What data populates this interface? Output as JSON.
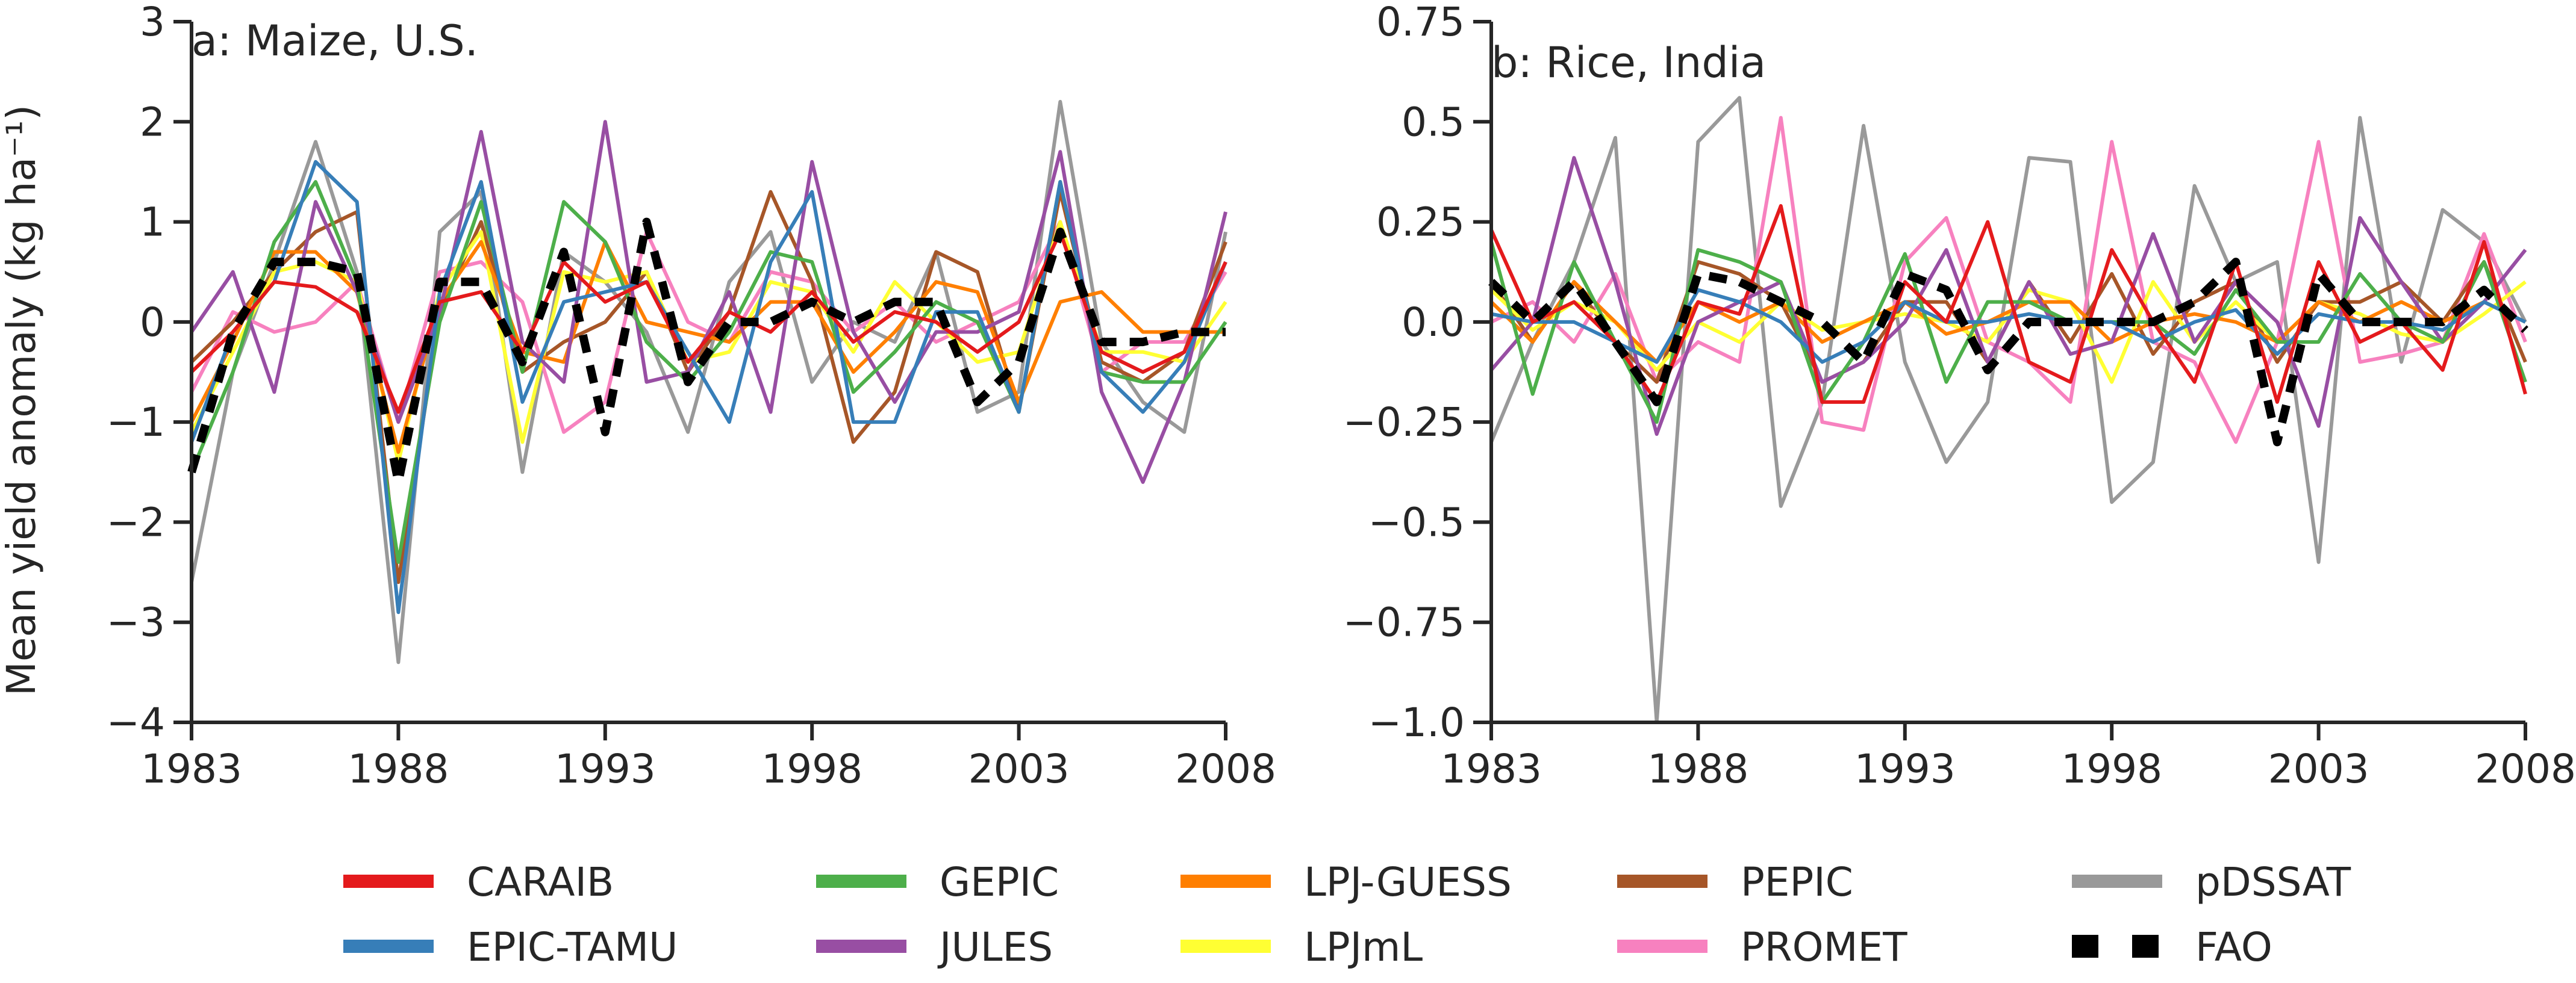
{
  "colors": {
    "CARAIB": "#e41a1c",
    "EPIC-TAMU": "#377eb8",
    "GEPIC": "#4daf4a",
    "JULES": "#984ea3",
    "LPJ-GUESS": "#ff7f00",
    "LPJmL": "#ffff33",
    "PEPIC": "#a65628",
    "PROMET": "#f781bf",
    "pDSSAT": "#999999",
    "FAO": "#000000"
  },
  "ylabel": "Mean yield anomaly (kg ha⁻¹)",
  "legend": {
    "placement": "bottom",
    "entries": [
      "CARAIB",
      "GEPIC",
      "LPJ-GUESS",
      "PEPIC",
      "pDSSAT",
      "EPIC-TAMU",
      "JULES",
      "LPJmL",
      "PROMET",
      "FAO"
    ]
  },
  "chart_data": [
    {
      "type": "line",
      "title": "a: Maize, U.S.",
      "ylabel": "Mean yield anomaly (kg ha⁻¹)",
      "xlim": [
        1983,
        2008
      ],
      "ylim": [
        -4,
        3
      ],
      "xticks": [
        1983,
        1988,
        1993,
        1998,
        2003,
        2008
      ],
      "yticks": [
        -4,
        -3,
        -2,
        -1,
        0,
        1,
        2,
        3
      ],
      "ytick_labels": [
        "−4",
        "−3",
        "−2",
        "−1",
        "0",
        "1",
        "2",
        "3"
      ],
      "grid": false,
      "x": [
        1983,
        1984,
        1985,
        1986,
        1987,
        1988,
        1989,
        1990,
        1991,
        1992,
        1993,
        1994,
        1995,
        1996,
        1997,
        1998,
        1999,
        2000,
        2001,
        2002,
        2003,
        2004,
        2005,
        2006,
        2007,
        2008
      ],
      "series": [
        {
          "name": "CARAIB",
          "values": [
            -0.5,
            -0.1,
            0.4,
            0.35,
            0.1,
            -0.9,
            0.2,
            0.3,
            -0.3,
            0.6,
            0.2,
            0.4,
            -0.4,
            0.1,
            -0.1,
            0.3,
            -0.2,
            0.1,
            0.0,
            -0.3,
            0.0,
            0.9,
            -0.3,
            -0.5,
            -0.3,
            0.6
          ]
        },
        {
          "name": "EPIC-TAMU",
          "values": [
            -1.2,
            -0.1,
            0.4,
            1.6,
            1.2,
            -2.9,
            0.3,
            1.4,
            -0.8,
            0.2,
            0.3,
            0.4,
            -0.3,
            -1.0,
            0.6,
            1.3,
            -1.0,
            -1.0,
            0.1,
            0.1,
            -0.9,
            1.4,
            -0.5,
            -0.9,
            -0.4,
            0.6
          ]
        },
        {
          "name": "GEPIC",
          "values": [
            -1.5,
            -0.5,
            0.8,
            1.4,
            0.4,
            -2.4,
            0.0,
            1.2,
            -0.5,
            1.2,
            0.8,
            -0.2,
            -0.6,
            -0.1,
            0.7,
            0.6,
            -0.7,
            -0.3,
            0.2,
            0.0,
            -0.9,
            1.4,
            -0.5,
            -0.6,
            -0.6,
            0.0
          ]
        },
        {
          "name": "JULES",
          "values": [
            -0.1,
            0.5,
            -0.7,
            1.2,
            0.3,
            -1.0,
            0.1,
            1.9,
            -0.2,
            -0.6,
            2.0,
            -0.6,
            -0.5,
            0.3,
            -0.9,
            1.6,
            -0.1,
            -0.8,
            -0.1,
            -0.1,
            0.1,
            1.7,
            -0.7,
            -1.6,
            -0.6,
            1.1
          ]
        },
        {
          "name": "LPJ-GUESS",
          "values": [
            -1.0,
            -0.2,
            0.7,
            0.7,
            0.3,
            -1.3,
            0.2,
            0.8,
            -0.3,
            -0.4,
            0.8,
            0.0,
            -0.1,
            -0.2,
            0.2,
            0.2,
            -0.5,
            -0.1,
            0.4,
            0.3,
            -0.8,
            0.2,
            0.3,
            -0.1,
            -0.1,
            -0.1
          ]
        },
        {
          "name": "LPJmL",
          "values": [
            -1.1,
            -0.3,
            0.5,
            0.6,
            0.4,
            -1.4,
            0.3,
            0.9,
            -1.2,
            0.5,
            0.4,
            0.5,
            -0.4,
            -0.3,
            0.4,
            0.3,
            -0.3,
            0.4,
            0.0,
            -0.4,
            -0.3,
            1.0,
            -0.3,
            -0.3,
            -0.4,
            0.2
          ]
        },
        {
          "name": "PEPIC",
          "values": [
            -0.4,
            0.0,
            0.5,
            0.9,
            1.1,
            -2.6,
            0.1,
            1.0,
            -0.5,
            -0.2,
            0.0,
            0.5,
            -0.5,
            0.1,
            1.3,
            0.4,
            -1.2,
            -0.7,
            0.7,
            0.5,
            -0.9,
            1.3,
            -0.4,
            -0.6,
            -0.3,
            0.8
          ]
        },
        {
          "name": "PROMET",
          "values": [
            -0.7,
            0.1,
            -0.1,
            0.0,
            0.4,
            -1.0,
            0.5,
            0.6,
            0.2,
            -1.1,
            -0.8,
            0.9,
            0.0,
            -0.2,
            0.5,
            0.4,
            -0.1,
            0.2,
            -0.2,
            0.0,
            0.2,
            1.0,
            -0.5,
            -0.2,
            -0.2,
            0.5
          ]
        },
        {
          "name": "pDSSAT",
          "values": [
            -2.6,
            -0.5,
            0.6,
            1.8,
            0.5,
            -3.4,
            0.9,
            1.3,
            -1.5,
            0.7,
            0.4,
            -0.1,
            -1.1,
            0.4,
            0.9,
            -0.6,
            0.0,
            -0.2,
            0.7,
            -0.9,
            -0.7,
            2.2,
            -0.2,
            -0.8,
            -1.1,
            0.9
          ]
        },
        {
          "name": "FAO",
          "values": [
            -1.5,
            -0.1,
            0.6,
            0.6,
            0.5,
            -1.6,
            0.4,
            0.4,
            -0.4,
            0.7,
            -1.1,
            1.0,
            -0.6,
            0.0,
            0.0,
            0.2,
            0.0,
            0.2,
            0.2,
            -0.8,
            -0.4,
            0.9,
            -0.2,
            -0.2,
            -0.1,
            -0.1
          ]
        }
      ]
    },
    {
      "type": "line",
      "title": "b: Rice, India",
      "xlim": [
        1983,
        2008
      ],
      "ylim": [
        -1.0,
        0.75
      ],
      "xticks": [
        1983,
        1988,
        1993,
        1998,
        2003,
        2008
      ],
      "yticks": [
        -1.0,
        -0.75,
        -0.5,
        -0.25,
        0.0,
        0.25,
        0.5,
        0.75
      ],
      "ytick_labels": [
        "−1.0",
        "−0.75",
        "−0.5",
        "−0.25",
        "0.0",
        "0.25",
        "0.5",
        "0.75"
      ],
      "grid": false,
      "x": [
        1983,
        1984,
        1985,
        1986,
        1987,
        1988,
        1989,
        1990,
        1991,
        1992,
        1993,
        1994,
        1995,
        1996,
        1997,
        1998,
        1999,
        2000,
        2001,
        2002,
        2003,
        2004,
        2005,
        2006,
        2007,
        2008
      ],
      "series": [
        {
          "name": "CARAIB",
          "values": [
            0.23,
            0.0,
            0.05,
            -0.05,
            -0.2,
            0.05,
            0.02,
            0.29,
            -0.2,
            -0.2,
            0.1,
            0.0,
            0.25,
            -0.1,
            -0.15,
            0.18,
            0.0,
            -0.15,
            0.15,
            -0.2,
            0.15,
            -0.05,
            0.0,
            -0.12,
            0.2,
            -0.18
          ]
        },
        {
          "name": "EPIC-TAMU",
          "values": [
            0.02,
            0.0,
            0.0,
            -0.05,
            -0.1,
            0.08,
            0.05,
            0.0,
            -0.1,
            -0.05,
            0.05,
            0.0,
            0.0,
            0.02,
            0.0,
            0.0,
            -0.05,
            0.0,
            0.03,
            -0.08,
            0.02,
            0.0,
            0.0,
            -0.02,
            0.05,
            0.0
          ]
        },
        {
          "name": "GEPIC",
          "values": [
            0.2,
            -0.18,
            0.15,
            -0.05,
            -0.25,
            0.18,
            0.15,
            0.1,
            -0.2,
            -0.05,
            0.17,
            -0.15,
            0.05,
            0.05,
            0.0,
            0.0,
            0.0,
            -0.08,
            0.08,
            -0.05,
            -0.05,
            0.12,
            0.0,
            -0.05,
            0.15,
            -0.15
          ]
        },
        {
          "name": "JULES",
          "values": [
            -0.12,
            0.0,
            0.41,
            0.1,
            -0.28,
            0.0,
            0.05,
            0.1,
            -0.15,
            -0.1,
            0.0,
            0.18,
            -0.1,
            0.1,
            -0.08,
            -0.05,
            0.22,
            -0.05,
            0.1,
            0.0,
            -0.26,
            0.26,
            0.1,
            -0.05,
            0.05,
            0.18
          ]
        },
        {
          "name": "LPJ-GUESS",
          "values": [
            0.05,
            -0.05,
            0.1,
            0.0,
            -0.1,
            0.05,
            0.0,
            0.05,
            -0.05,
            0.0,
            0.05,
            -0.03,
            0.0,
            0.05,
            0.05,
            -0.05,
            0.0,
            0.02,
            0.0,
            -0.05,
            0.05,
            0.0,
            0.05,
            0.0,
            0.05,
            0.0
          ]
        },
        {
          "name": "LPJmL",
          "values": [
            0.08,
            -0.02,
            0.05,
            0.0,
            -0.12,
            0.0,
            -0.05,
            0.05,
            -0.02,
            0.0,
            0.02,
            0.0,
            -0.05,
            0.08,
            0.05,
            -0.15,
            0.1,
            -0.05,
            0.05,
            -0.05,
            0.05,
            0.02,
            -0.03,
            -0.05,
            0.02,
            0.1
          ]
        },
        {
          "name": "PEPIC",
          "values": [
            0.1,
            -0.05,
            0.1,
            -0.05,
            -0.15,
            0.15,
            0.12,
            0.05,
            -0.15,
            -0.1,
            0.05,
            0.05,
            -0.1,
            0.1,
            -0.05,
            0.12,
            -0.08,
            0.05,
            0.1,
            -0.1,
            0.05,
            0.05,
            0.1,
            0.0,
            0.15,
            -0.1
          ]
        },
        {
          "name": "PROMET",
          "values": [
            0.0,
            0.05,
            -0.05,
            0.12,
            -0.15,
            -0.05,
            -0.1,
            0.51,
            -0.25,
            -0.27,
            0.15,
            0.26,
            -0.05,
            -0.1,
            -0.2,
            0.45,
            -0.05,
            -0.1,
            -0.3,
            -0.05,
            0.45,
            -0.1,
            -0.08,
            -0.05,
            0.22,
            -0.05
          ]
        },
        {
          "name": "pDSSAT",
          "values": [
            -0.3,
            -0.05,
            0.15,
            0.46,
            -1.0,
            0.45,
            0.56,
            -0.46,
            -0.2,
            0.49,
            -0.1,
            -0.35,
            -0.2,
            0.41,
            0.4,
            -0.45,
            -0.35,
            0.34,
            0.1,
            0.15,
            -0.6,
            0.51,
            -0.1,
            0.28,
            0.2,
            0.0
          ]
        },
        {
          "name": "FAO",
          "values": [
            0.1,
            0.0,
            0.1,
            -0.05,
            -0.2,
            0.12,
            0.1,
            0.05,
            0.0,
            -0.1,
            0.12,
            0.08,
            -0.12,
            0.0,
            0.0,
            0.0,
            0.0,
            0.05,
            0.15,
            -0.3,
            0.12,
            0.0,
            0.0,
            0.0,
            0.08,
            -0.02
          ]
        }
      ]
    }
  ]
}
